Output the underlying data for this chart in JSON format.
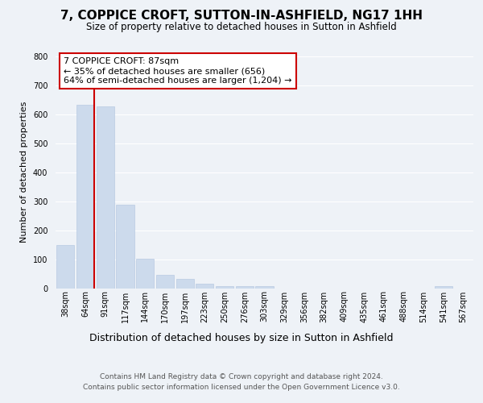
{
  "title": "7, COPPICE CROFT, SUTTON-IN-ASHFIELD, NG17 1HH",
  "subtitle": "Size of property relative to detached houses in Sutton in Ashfield",
  "xlabel": "Distribution of detached houses by size in Sutton in Ashfield",
  "ylabel": "Number of detached properties",
  "bin_labels": [
    "38sqm",
    "64sqm",
    "91sqm",
    "117sqm",
    "144sqm",
    "170sqm",
    "197sqm",
    "223sqm",
    "250sqm",
    "276sqm",
    "303sqm",
    "329sqm",
    "356sqm",
    "382sqm",
    "409sqm",
    "435sqm",
    "461sqm",
    "488sqm",
    "514sqm",
    "541sqm",
    "567sqm"
  ],
  "bar_heights": [
    148,
    632,
    628,
    287,
    102,
    46,
    32,
    14,
    6,
    6,
    6,
    0,
    0,
    0,
    0,
    0,
    0,
    0,
    0,
    6,
    0
  ],
  "bar_color": "#ccdaec",
  "vline_color": "#cc0000",
  "vline_x_index": 1,
  "annotation_title": "7 COPPICE CROFT: 87sqm",
  "annotation_line1": "← 35% of detached houses are smaller (656)",
  "annotation_line2": "64% of semi-detached houses are larger (1,204) →",
  "annotation_box_color": "#ffffff",
  "annotation_box_edge": "#cc0000",
  "ylim": [
    0,
    800
  ],
  "yticks": [
    0,
    100,
    200,
    300,
    400,
    500,
    600,
    700,
    800
  ],
  "footer1": "Contains HM Land Registry data © Crown copyright and database right 2024.",
  "footer2": "Contains public sector information licensed under the Open Government Licence v3.0.",
  "background_color": "#eef2f7",
  "plot_bg_color": "#eef2f7",
  "grid_color": "#ffffff",
  "title_fontsize": 11,
  "subtitle_fontsize": 8.5,
  "ylabel_fontsize": 8,
  "xlabel_fontsize": 9,
  "tick_fontsize": 7,
  "annotation_fontsize": 8,
  "footer_fontsize": 6.5
}
